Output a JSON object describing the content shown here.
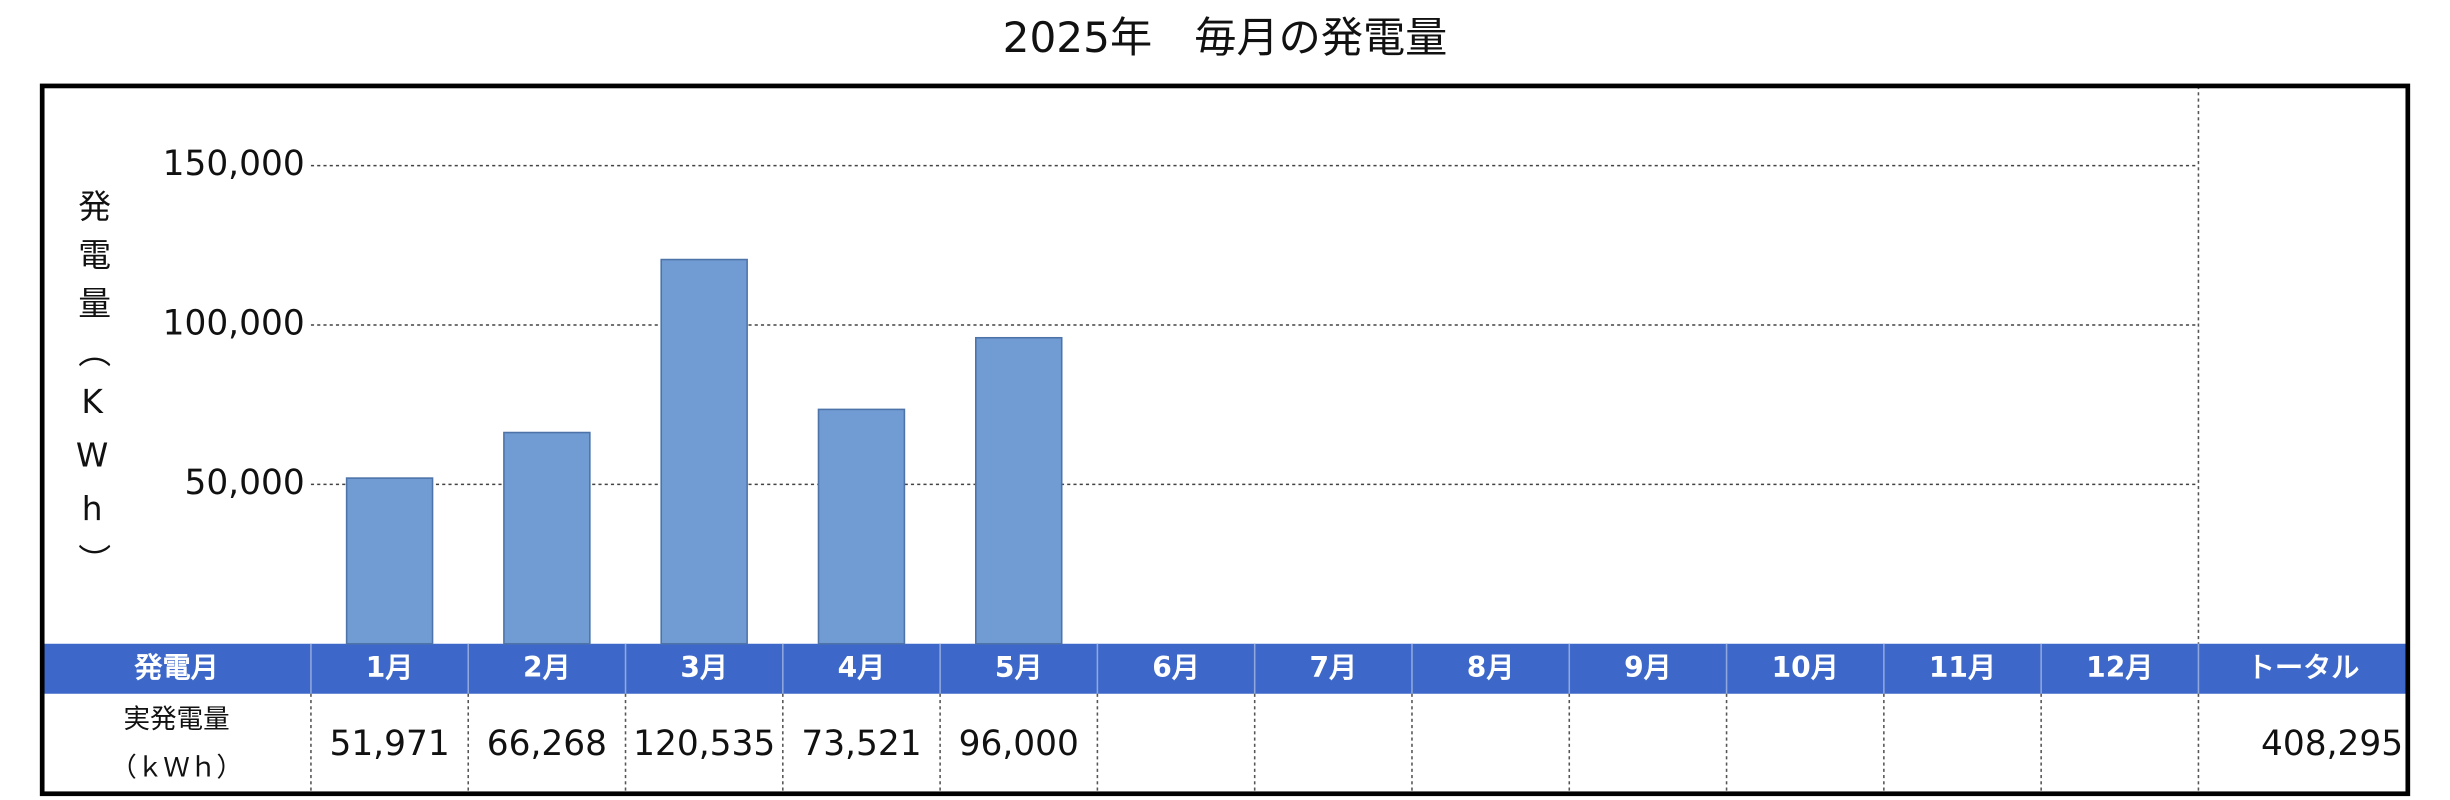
{
  "chart_data": {
    "type": "bar",
    "title": "2025年　毎月の発電量",
    "y_label": "発電量（KWh）",
    "categories": [
      "1月",
      "2月",
      "3月",
      "4月",
      "5月",
      "6月",
      "7月",
      "8月",
      "9月",
      "10月",
      "11月",
      "12月"
    ],
    "values": [
      51971,
      66268,
      120535,
      73521,
      96000,
      null,
      null,
      null,
      null,
      null,
      null,
      null
    ],
    "value_labels": [
      "51,971",
      "66,268",
      "120,535",
      "73,521",
      "96,000",
      null,
      null,
      null,
      null,
      null,
      null,
      null
    ],
    "color": "#719bd3",
    "ylim": [
      0,
      175000
    ],
    "yticks": [
      {
        "value": 50000,
        "label": "50,000"
      },
      {
        "value": 100000,
        "label": "100,000"
      },
      {
        "value": 150000,
        "label": "150,000"
      }
    ],
    "grid": true
  },
  "table": {
    "header_label": "発電月",
    "total_header": "トータル",
    "row_label": [
      "実発電量",
      "（ｋＷｈ）"
    ],
    "total": {
      "value": 408295,
      "label": "408,295"
    }
  }
}
